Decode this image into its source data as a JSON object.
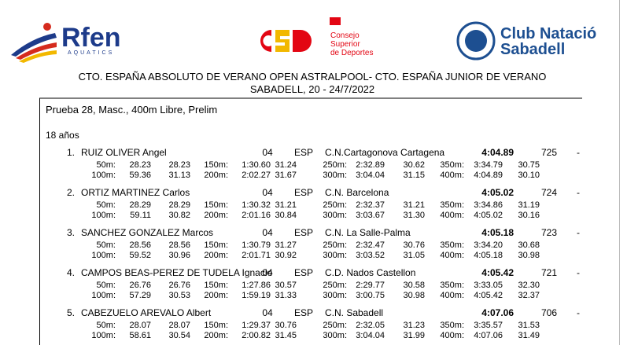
{
  "header": {
    "logos": {
      "rfen": "Rfen",
      "rfen_sub": "AQUATICS",
      "csd": [
        "Consejo",
        "Superior",
        "de Deportes"
      ],
      "club": [
        "Club Natació",
        "Sabadell"
      ]
    },
    "title": "CTO. ESPAÑA ABSOLUTO DE VERANO OPEN ASTRALPOOL- CTO. ESPAÑA JUNIOR DE VERANO",
    "subtitle": "SABADELL, 20 - 24/7/2022"
  },
  "event": "Prueba 28, Masc., 400m Libre, Prelim",
  "age_group": "18 años",
  "results": [
    {
      "place": "1.",
      "name": "RUIZ OLIVER Angel",
      "year": "04",
      "nation": "ESP",
      "club": "C.N.Cartagonova Cartagena",
      "time": "4:04.89",
      "points": "725",
      "dash": "-",
      "splits": [
        [
          "50m:",
          "28.23",
          "28.23",
          "150m:",
          "1:30.60",
          "31.24",
          "250m:",
          "2:32.89",
          "30.62",
          "350m:",
          "3:34.79",
          "30.75"
        ],
        [
          "100m:",
          "59.36",
          "31.13",
          "200m:",
          "2:02.27",
          "31.67",
          "300m:",
          "3:04.04",
          "31.15",
          "400m:",
          "4:04.89",
          "30.10"
        ]
      ]
    },
    {
      "place": "2.",
      "name": "ORTIZ MARTINEZ Carlos",
      "year": "04",
      "nation": "ESP",
      "club": "C.N. Barcelona",
      "time": "4:05.02",
      "points": "724",
      "dash": "-",
      "splits": [
        [
          "50m:",
          "28.29",
          "28.29",
          "150m:",
          "1:30.32",
          "31.21",
          "250m:",
          "2:32.37",
          "31.21",
          "350m:",
          "3:34.86",
          "31.19"
        ],
        [
          "100m:",
          "59.11",
          "30.82",
          "200m:",
          "2:01.16",
          "30.84",
          "300m:",
          "3:03.67",
          "31.30",
          "400m:",
          "4:05.02",
          "30.16"
        ]
      ]
    },
    {
      "place": "3.",
      "name": "SANCHEZ GONZALEZ Marcos",
      "year": "04",
      "nation": "ESP",
      "club": "C.N. La Salle-Palma",
      "time": "4:05.18",
      "points": "723",
      "dash": "-",
      "splits": [
        [
          "50m:",
          "28.56",
          "28.56",
          "150m:",
          "1:30.79",
          "31.27",
          "250m:",
          "2:32.47",
          "30.76",
          "350m:",
          "3:34.20",
          "30.68"
        ],
        [
          "100m:",
          "59.52",
          "30.96",
          "200m:",
          "2:01.71",
          "30.92",
          "300m:",
          "3:03.52",
          "31.05",
          "400m:",
          "4:05.18",
          "30.98"
        ]
      ]
    },
    {
      "place": "4.",
      "name": "CAMPOS BEAS-PEREZ DE TUDELA Ignacio",
      "year": "04",
      "nation": "ESP",
      "club": "C.D. Nados Castellon",
      "time": "4:05.42",
      "points": "721",
      "dash": "-",
      "splits": [
        [
          "50m:",
          "26.76",
          "26.76",
          "150m:",
          "1:27.86",
          "30.57",
          "250m:",
          "2:29.77",
          "30.58",
          "350m:",
          "3:33.05",
          "32.30"
        ],
        [
          "100m:",
          "57.29",
          "30.53",
          "200m:",
          "1:59.19",
          "31.33",
          "300m:",
          "3:00.75",
          "30.98",
          "400m:",
          "4:05.42",
          "32.37"
        ]
      ]
    },
    {
      "place": "5.",
      "name": "CABEZUELO AREVALO Albert",
      "year": "04",
      "nation": "ESP",
      "club": "C.N. Sabadell",
      "time": "4:07.06",
      "points": "706",
      "dash": "-",
      "splits": [
        [
          "50m:",
          "28.07",
          "28.07",
          "150m:",
          "1:29.37",
          "30.76",
          "250m:",
          "2:32.05",
          "31.23",
          "350m:",
          "3:35.57",
          "31.53"
        ],
        [
          "100m:",
          "58.61",
          "30.54",
          "200m:",
          "2:00.82",
          "31.45",
          "300m:",
          "3:04.04",
          "31.99",
          "400m:",
          "4:07.06",
          "31.49"
        ]
      ]
    }
  ]
}
